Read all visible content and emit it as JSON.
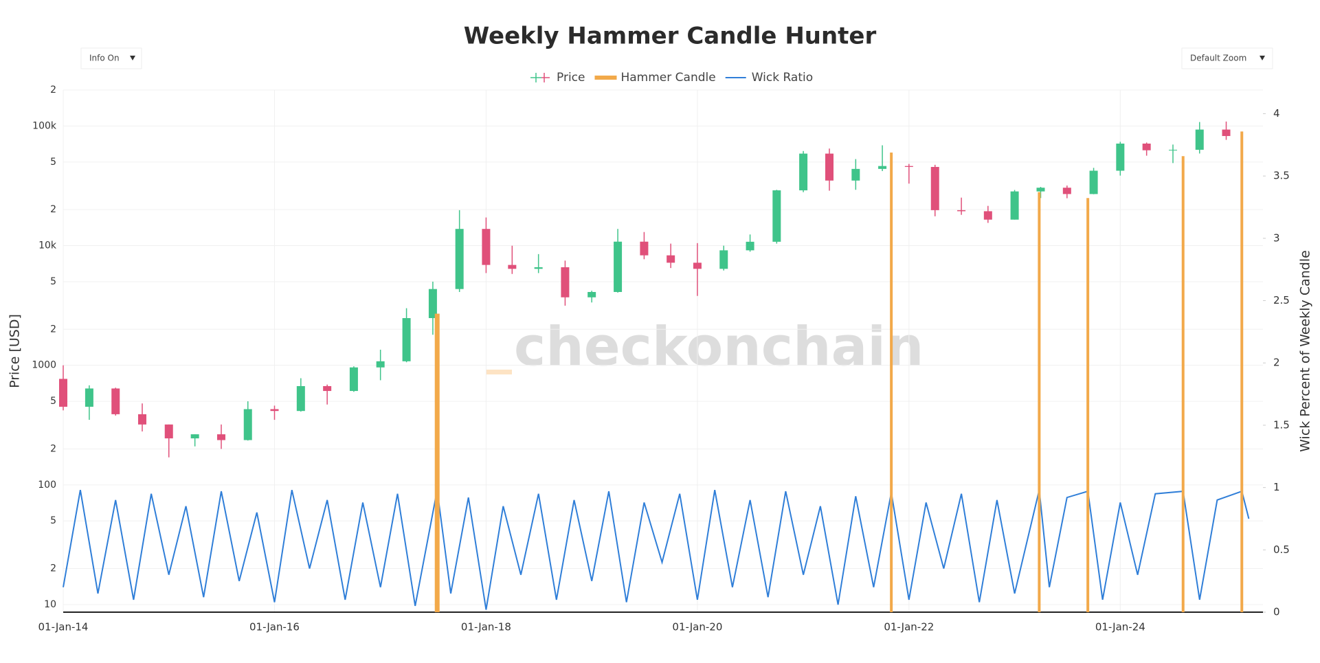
{
  "controls": {
    "info": "Info On",
    "zoom": "Default Zoom"
  },
  "watermark": "checkonchain",
  "chart_data": {
    "type": "candlestick",
    "title": "Weekly Hammer Candle Hunter",
    "ylabel": "Price [USD]",
    "y2label": "Wick Percent of Weekly Candle",
    "log_y": true,
    "grid": true,
    "legend": "top",
    "xlim": [
      "2014-01-01",
      "2025-05-08"
    ],
    "xticks": [
      {
        "value": "2014-01-01",
        "label": "01-Jan-14"
      },
      {
        "value": "2016-01-01",
        "label": "01-Jan-16"
      },
      {
        "value": "2018-01-01",
        "label": "01-Jan-18"
      },
      {
        "value": "2020-01-01",
        "label": "01-Jan-20"
      },
      {
        "value": "2022-01-01",
        "label": "01-Jan-22"
      },
      {
        "value": "2024-01-01",
        "label": "01-Jan-24"
      }
    ],
    "ylim": [
      8.64,
      200000
    ],
    "yticks": [
      10,
      {
        "value": 20,
        "label": "2"
      },
      {
        "value": 50,
        "label": "5"
      },
      100,
      {
        "value": 200,
        "label": "2"
      },
      {
        "value": 500,
        "label": "5"
      },
      1000,
      {
        "value": 2000,
        "label": "2"
      },
      {
        "value": 5000,
        "label": "5"
      },
      {
        "value": 10000,
        "label": "10k"
      },
      {
        "value": 20000,
        "label": "2"
      },
      {
        "value": 50000,
        "label": "5"
      },
      {
        "value": 100000,
        "label": "100k"
      },
      {
        "value": 200000,
        "label": "2"
      }
    ],
    "y2lim": [
      0,
      4.19
    ],
    "y2ticks": [
      0,
      0.5,
      1,
      1.5,
      2,
      2.5,
      3,
      3.5,
      4
    ],
    "series": [
      {
        "name": "Price",
        "type": "candlestick",
        "increasing_color": "#3fc48a",
        "decreasing_color": "#e0507a",
        "x": [
          "2014-01-01",
          "2014-04-01",
          "2014-07-01",
          "2014-10-01",
          "2015-01-01",
          "2015-04-01",
          "2015-07-01",
          "2015-10-01",
          "2016-01-01",
          "2016-04-01",
          "2016-07-01",
          "2016-10-01",
          "2017-01-01",
          "2017-04-01",
          "2017-07-01",
          "2017-10-01",
          "2018-01-01",
          "2018-04-01",
          "2018-07-01",
          "2018-10-01",
          "2019-01-01",
          "2019-04-01",
          "2019-07-01",
          "2019-10-01",
          "2020-01-01",
          "2020-04-01",
          "2020-07-01",
          "2020-10-01",
          "2021-01-01",
          "2021-04-01",
          "2021-07-01",
          "2021-10-01",
          "2022-01-01",
          "2022-04-01",
          "2022-07-01",
          "2022-10-01",
          "2023-01-01",
          "2023-04-01",
          "2023-07-01",
          "2023-10-01",
          "2024-01-01",
          "2024-04-01",
          "2024-07-01",
          "2024-10-01",
          "2025-01-01"
        ],
        "open": [
          770,
          450,
          640,
          390,
          320,
          245,
          265,
          237,
          430,
          415,
          670,
          610,
          960,
          1080,
          2480,
          4340,
          13800,
          6900,
          6400,
          6600,
          3700,
          4100,
          10800,
          8300,
          7200,
          6400,
          9140,
          10780,
          29000,
          58800,
          35000,
          43800,
          46300,
          45500,
          19800,
          19400,
          16500,
          28400,
          30500,
          27000,
          42300,
          71300,
          62700,
          63300,
          93400
        ],
        "high": [
          1000,
          680,
          650,
          480,
          320,
          265,
          320,
          500,
          460,
          780,
          690,
          980,
          1350,
          3000,
          5000,
          19800,
          17200,
          9990,
          8500,
          7500,
          4200,
          13800,
          13000,
          10400,
          10500,
          10000,
          12400,
          29300,
          61800,
          64800,
          52900,
          69000,
          48200,
          47400,
          25200,
          21500,
          29200,
          31000,
          31800,
          44700,
          73800,
          72800,
          70000,
          108000,
          109000
        ],
        "low": [
          420,
          350,
          380,
          280,
          170,
          210,
          200,
          235,
          350,
          410,
          470,
          600,
          750,
          1060,
          1800,
          4100,
          5900,
          5800,
          5900,
          3150,
          3350,
          4050,
          7700,
          6500,
          3800,
          6200,
          8900,
          10400,
          28000,
          28800,
          29300,
          42000,
          33000,
          17600,
          18100,
          15500,
          16500,
          25000,
          24900,
          26900,
          38500,
          56500,
          49000,
          58900,
          76600
        ],
        "close": [
          450,
          640,
          390,
          320,
          245,
          265,
          237,
          430,
          415,
          670,
          610,
          960,
          1080,
          2480,
          4340,
          13800,
          6900,
          6400,
          6600,
          3700,
          4100,
          10800,
          8300,
          7200,
          6400,
          9140,
          10780,
          29000,
          58800,
          35000,
          43800,
          46300,
          45500,
          19800,
          19400,
          16500,
          28400,
          30500,
          27000,
          42300,
          71300,
          62700,
          63300,
          93400,
          82500
        ]
      },
      {
        "name": "Hammer Candle",
        "type": "bar",
        "color": "#f2a94a",
        "x": [
          "2017-07-16",
          "2021-11-01",
          "2023-03-27",
          "2023-09-11",
          "2024-08-05",
          "2025-02-24"
        ],
        "values": [
          2700,
          60000,
          28000,
          25000,
          56000,
          90000
        ]
      },
      {
        "name": "Wick Ratio",
        "type": "line",
        "color": "#2f7ed8",
        "axis": "y2",
        "x": [
          "2014-01-01",
          "2014-03-01",
          "2014-05-01",
          "2014-07-01",
          "2014-09-01",
          "2014-11-01",
          "2015-01-01",
          "2015-03-01",
          "2015-05-01",
          "2015-07-01",
          "2015-09-01",
          "2015-11-01",
          "2016-01-01",
          "2016-03-01",
          "2016-05-01",
          "2016-07-01",
          "2016-09-01",
          "2016-11-01",
          "2017-01-01",
          "2017-03-01",
          "2017-05-01",
          "2017-07-16",
          "2017-09-01",
          "2017-11-01",
          "2018-01-01",
          "2018-03-01",
          "2018-05-01",
          "2018-07-01",
          "2018-09-01",
          "2018-11-01",
          "2019-01-01",
          "2019-03-01",
          "2019-05-01",
          "2019-07-01",
          "2019-09-01",
          "2019-11-01",
          "2020-01-01",
          "2020-03-01",
          "2020-05-01",
          "2020-07-01",
          "2020-09-01",
          "2020-11-01",
          "2021-01-01",
          "2021-03-01",
          "2021-05-01",
          "2021-07-01",
          "2021-09-01",
          "2021-11-01",
          "2022-01-01",
          "2022-03-01",
          "2022-05-01",
          "2022-07-01",
          "2022-09-01",
          "2022-11-01",
          "2023-01-01",
          "2023-03-27",
          "2023-05-01",
          "2023-07-01",
          "2023-09-11",
          "2023-11-01",
          "2024-01-01",
          "2024-03-01",
          "2024-05-01",
          "2024-08-05",
          "2024-10-01",
          "2024-12-01",
          "2025-02-24",
          "2025-03-20"
        ],
        "values": [
          0.2,
          0.98,
          0.15,
          0.9,
          0.1,
          0.95,
          0.3,
          0.85,
          0.12,
          0.97,
          0.25,
          0.8,
          0.08,
          0.98,
          0.35,
          0.9,
          0.1,
          0.88,
          0.2,
          0.95,
          0.05,
          0.98,
          0.15,
          0.92,
          0.02,
          0.85,
          0.3,
          0.95,
          0.1,
          0.9,
          0.25,
          0.97,
          0.08,
          0.88,
          0.4,
          0.95,
          0.1,
          0.98,
          0.2,
          0.9,
          0.12,
          0.97,
          0.3,
          0.85,
          0.06,
          0.93,
          0.2,
          0.96,
          0.1,
          0.88,
          0.35,
          0.95,
          0.08,
          0.9,
          0.15,
          0.98,
          0.2,
          0.92,
          0.97,
          0.1,
          0.88,
          0.3,
          0.95,
          0.97,
          0.1,
          0.9,
          0.97,
          0.75
        ]
      }
    ]
  }
}
